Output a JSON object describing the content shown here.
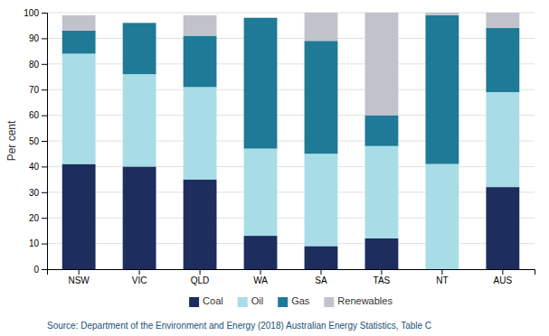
{
  "chart_data": {
    "type": "bar",
    "stacked": true,
    "categories": [
      "NSW",
      "VIC",
      "QLD",
      "WA",
      "SA",
      "TAS",
      "NT",
      "AUS"
    ],
    "series": [
      {
        "name": "Coal",
        "color": "#1c2d5e",
        "values": [
          41,
          40,
          35,
          13,
          9,
          12,
          0,
          32
        ]
      },
      {
        "name": "Oil",
        "color": "#a8dde8",
        "values": [
          43,
          36,
          36,
          34,
          36,
          36,
          41,
          37
        ]
      },
      {
        "name": "Gas",
        "color": "#1e7a96",
        "values": [
          9,
          20,
          20,
          51,
          44,
          12,
          58,
          25
        ]
      },
      {
        "name": "Renewables",
        "color": "#c2c2cc",
        "values": [
          6,
          0,
          8,
          0,
          11,
          40,
          1,
          6
        ]
      }
    ],
    "ylabel": "Per cent",
    "ylim": [
      0,
      100
    ],
    "yticks": [
      0,
      10,
      20,
      30,
      40,
      50,
      60,
      70,
      80,
      90,
      100
    ],
    "grid": true,
    "legend": "bottom",
    "annotations": [
      "Source: Department of the Environment and Energy (2018) Australian Energy Statistics, Table C"
    ]
  }
}
